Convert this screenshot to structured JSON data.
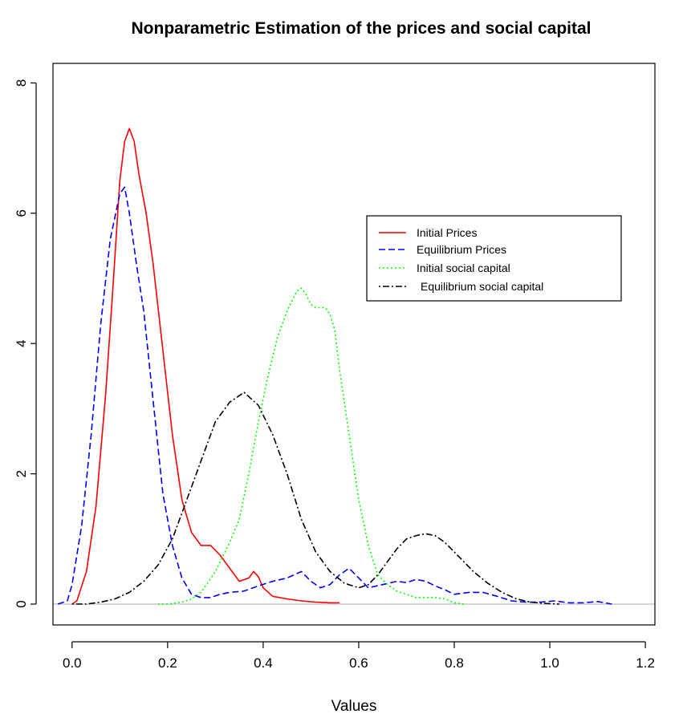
{
  "chart_data": {
    "type": "line",
    "title": "Nonparametric Estimation of the prices and social capital",
    "xlabel": "Values",
    "ylabel": "",
    "xlim": [
      -0.04,
      1.22
    ],
    "ylim": [
      -0.32,
      8.3
    ],
    "x_ticks": [
      0.0,
      0.2,
      0.4,
      0.6,
      0.8,
      1.0,
      1.2
    ],
    "x_tick_labels": [
      "0.0",
      "0.2",
      "0.4",
      "0.6",
      "0.8",
      "1.0",
      "1.2"
    ],
    "y_ticks": [
      0,
      2,
      4,
      6,
      8
    ],
    "y_tick_labels": [
      "0",
      "2",
      "4",
      "6",
      "8"
    ],
    "baseline": 0,
    "grid": false,
    "legend_position": "right",
    "series": [
      {
        "name": "Initial Prices",
        "color": "#ff0000",
        "dash": "solid",
        "x": [
          0.0,
          0.01,
          0.03,
          0.05,
          0.07,
          0.085,
          0.1,
          0.11,
          0.12,
          0.13,
          0.14,
          0.155,
          0.17,
          0.19,
          0.21,
          0.23,
          0.25,
          0.27,
          0.29,
          0.31,
          0.33,
          0.35,
          0.37,
          0.38,
          0.39,
          0.4,
          0.42,
          0.45,
          0.48,
          0.51,
          0.54,
          0.56
        ],
        "values": [
          0.0,
          0.05,
          0.5,
          1.5,
          3.2,
          4.8,
          6.5,
          7.1,
          7.3,
          7.1,
          6.6,
          6.0,
          5.2,
          3.9,
          2.6,
          1.6,
          1.1,
          0.9,
          0.9,
          0.75,
          0.55,
          0.35,
          0.4,
          0.5,
          0.42,
          0.25,
          0.12,
          0.08,
          0.05,
          0.03,
          0.02,
          0.02
        ]
      },
      {
        "name": "Equilibrium Prices",
        "color": "#0000ff",
        "dash": "dashed",
        "x": [
          -0.03,
          -0.01,
          0.0,
          0.02,
          0.04,
          0.06,
          0.08,
          0.1,
          0.11,
          0.12,
          0.135,
          0.15,
          0.17,
          0.19,
          0.21,
          0.23,
          0.25,
          0.27,
          0.29,
          0.31,
          0.33,
          0.36,
          0.39,
          0.42,
          0.45,
          0.48,
          0.5,
          0.52,
          0.54,
          0.56,
          0.58,
          0.6,
          0.62,
          0.65,
          0.68,
          0.7,
          0.72,
          0.74,
          0.76,
          0.78,
          0.8,
          0.83,
          0.86,
          0.89,
          0.92,
          0.95,
          0.98,
          1.01,
          1.04,
          1.07,
          1.1,
          1.13
        ],
        "values": [
          0.0,
          0.05,
          0.3,
          1.2,
          2.6,
          4.3,
          5.6,
          6.3,
          6.4,
          6.0,
          5.2,
          4.5,
          3.1,
          1.7,
          0.9,
          0.4,
          0.15,
          0.1,
          0.1,
          0.15,
          0.18,
          0.2,
          0.28,
          0.35,
          0.4,
          0.5,
          0.35,
          0.25,
          0.3,
          0.45,
          0.55,
          0.4,
          0.25,
          0.3,
          0.35,
          0.33,
          0.38,
          0.35,
          0.28,
          0.22,
          0.15,
          0.18,
          0.18,
          0.12,
          0.05,
          0.03,
          0.03,
          0.05,
          0.02,
          0.02,
          0.04,
          0.0
        ]
      },
      {
        "name": "Initial social capital",
        "color": "#00ff00",
        "dash": "dotted",
        "x": [
          0.18,
          0.2,
          0.23,
          0.25,
          0.27,
          0.3,
          0.33,
          0.35,
          0.37,
          0.39,
          0.41,
          0.43,
          0.45,
          0.47,
          0.48,
          0.49,
          0.5,
          0.51,
          0.52,
          0.53,
          0.54,
          0.55,
          0.56,
          0.58,
          0.6,
          0.62,
          0.64,
          0.66,
          0.68,
          0.7,
          0.72,
          0.74,
          0.76,
          0.78,
          0.8,
          0.82
        ],
        "values": [
          0.0,
          0.0,
          0.03,
          0.08,
          0.18,
          0.5,
          0.95,
          1.3,
          2.0,
          2.8,
          3.5,
          4.1,
          4.5,
          4.8,
          4.85,
          4.75,
          4.6,
          4.55,
          4.55,
          4.55,
          4.45,
          4.2,
          3.6,
          2.6,
          1.6,
          0.9,
          0.45,
          0.3,
          0.2,
          0.15,
          0.1,
          0.1,
          0.1,
          0.08,
          0.02,
          0.0
        ]
      },
      {
        "name": "Equilibrium social capital",
        "color": "#000000",
        "dash": "dashdot",
        "x": [
          0.0,
          0.03,
          0.06,
          0.09,
          0.12,
          0.15,
          0.18,
          0.21,
          0.24,
          0.27,
          0.3,
          0.33,
          0.36,
          0.39,
          0.42,
          0.45,
          0.48,
          0.51,
          0.54,
          0.57,
          0.6,
          0.62,
          0.64,
          0.66,
          0.68,
          0.7,
          0.72,
          0.74,
          0.76,
          0.78,
          0.8,
          0.82,
          0.84,
          0.87,
          0.9,
          0.93,
          0.96,
          0.99,
          1.02
        ],
        "values": [
          0.0,
          0.0,
          0.03,
          0.08,
          0.18,
          0.35,
          0.6,
          1.0,
          1.6,
          2.2,
          2.8,
          3.1,
          3.25,
          3.05,
          2.6,
          2.0,
          1.3,
          0.8,
          0.5,
          0.32,
          0.25,
          0.3,
          0.45,
          0.65,
          0.85,
          1.0,
          1.05,
          1.08,
          1.05,
          0.95,
          0.8,
          0.65,
          0.5,
          0.32,
          0.18,
          0.08,
          0.03,
          0.01,
          0.0
        ]
      }
    ]
  }
}
